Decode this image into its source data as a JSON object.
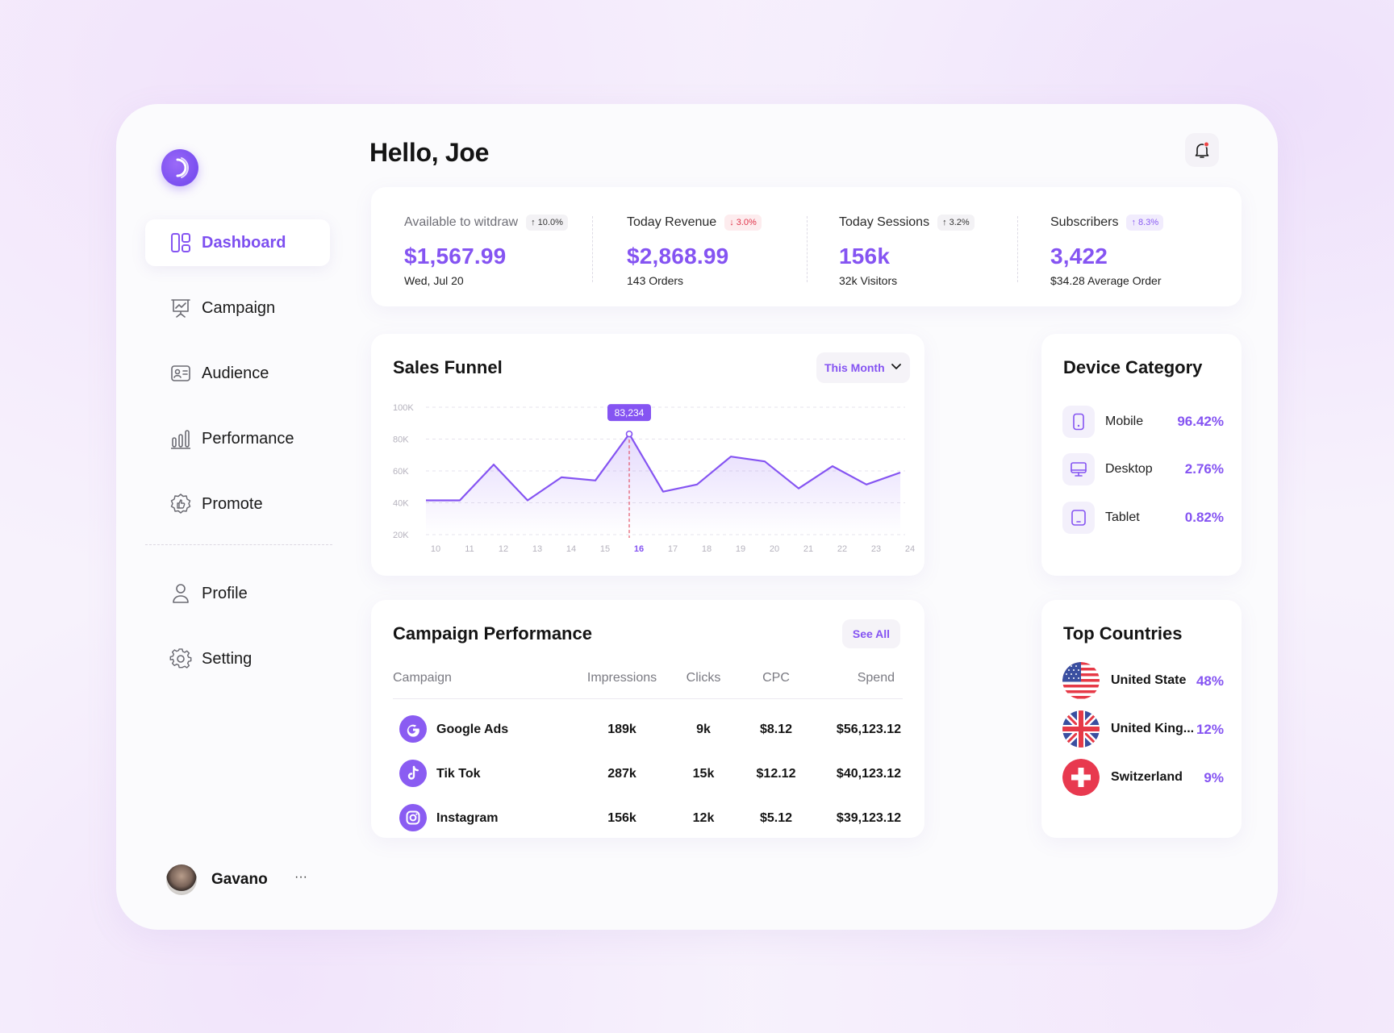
{
  "greeting": "Hello, Joe",
  "sidebar": {
    "items": [
      {
        "label": "Dashboard",
        "icon": "dashboard-icon",
        "active": true
      },
      {
        "label": "Campaign",
        "icon": "presentation-icon"
      },
      {
        "label": "Audience",
        "icon": "id-card-icon"
      },
      {
        "label": "Performance",
        "icon": "bar-chart-icon"
      },
      {
        "label": "Promote",
        "icon": "badge-thumb-icon"
      }
    ],
    "secondary": [
      {
        "label": "Profile",
        "icon": "user-icon"
      },
      {
        "label": "Setting",
        "icon": "gear-icon"
      }
    ],
    "user": {
      "name": "Gavano",
      "more": "···"
    }
  },
  "stats": [
    {
      "label": "Available to witdraw",
      "change": "10.0%",
      "trend": "up",
      "value": "$1,567.99",
      "sub": "Wed, Jul 20"
    },
    {
      "label": "Today Revenue",
      "change": "3.0%",
      "trend": "down",
      "value": "$2,868.99",
      "sub": "143 Orders"
    },
    {
      "label": "Today Sessions",
      "change": "3.2%",
      "trend": "up",
      "value": "156k",
      "sub": "32k Visitors"
    },
    {
      "label": "Subscribers",
      "change": "8.3%",
      "trend": "up",
      "value": "3,422",
      "sub": "$34.28 Average Order"
    }
  ],
  "sales_funnel": {
    "title": "Sales Funnel",
    "period": "This Month",
    "highlight_label": "83,234"
  },
  "chart_data": {
    "type": "area",
    "title": "Sales Funnel",
    "x": [
      10,
      11,
      12,
      13,
      14,
      15,
      16,
      17,
      18,
      19,
      20,
      21,
      22,
      23,
      24
    ],
    "values": [
      41500,
      41500,
      64000,
      41500,
      56000,
      54000,
      83234,
      47000,
      51500,
      69000,
      66000,
      49000,
      63000,
      51500,
      59000
    ],
    "ylim": [
      20000,
      100000
    ],
    "yticks": [
      "100K",
      "80K",
      "60K",
      "40K",
      "20K"
    ],
    "ytick_values": [
      100000,
      80000,
      60000,
      40000,
      20000
    ],
    "highlight_x": 16,
    "grid": true,
    "line_color": "#8554f2"
  },
  "device_category": {
    "title": "Device Category",
    "items": [
      {
        "name": "Mobile",
        "pct": "96.42%",
        "icon": "mobile-icon"
      },
      {
        "name": "Desktop",
        "pct": "2.76%",
        "icon": "desktop-icon"
      },
      {
        "name": "Tablet",
        "pct": "0.82%",
        "icon": "tablet-icon"
      }
    ]
  },
  "campaign_performance": {
    "title": "Campaign Performance",
    "see_all": "See All",
    "columns": [
      "Campaign",
      "Impressions",
      "Clicks",
      "CPC",
      "Spend"
    ],
    "rows": [
      {
        "name": "Google Ads",
        "impressions": "189k",
        "clicks": "9k",
        "cpc": "$8.12",
        "spend": "$56,123.12",
        "icon": "google-icon"
      },
      {
        "name": "Tik Tok",
        "impressions": "287k",
        "clicks": "15k",
        "cpc": "$12.12",
        "spend": "$40,123.12",
        "icon": "tiktok-icon"
      },
      {
        "name": "Instagram",
        "impressions": "156k",
        "clicks": "12k",
        "cpc": "$5.12",
        "spend": "$39,123.12",
        "icon": "instagram-icon"
      }
    ]
  },
  "top_countries": {
    "title": "Top Countries",
    "items": [
      {
        "name": "United State",
        "pct": "48%",
        "flag": "us-flag-icon"
      },
      {
        "name": "United King...",
        "pct": "12%",
        "flag": "uk-flag-icon"
      },
      {
        "name": "Switzerland",
        "pct": "9%",
        "flag": "swiss-flag-icon"
      }
    ]
  },
  "colors": {
    "accent": "#8554f2",
    "negative": "#e0344a",
    "notification_dot": "#ef4444"
  }
}
